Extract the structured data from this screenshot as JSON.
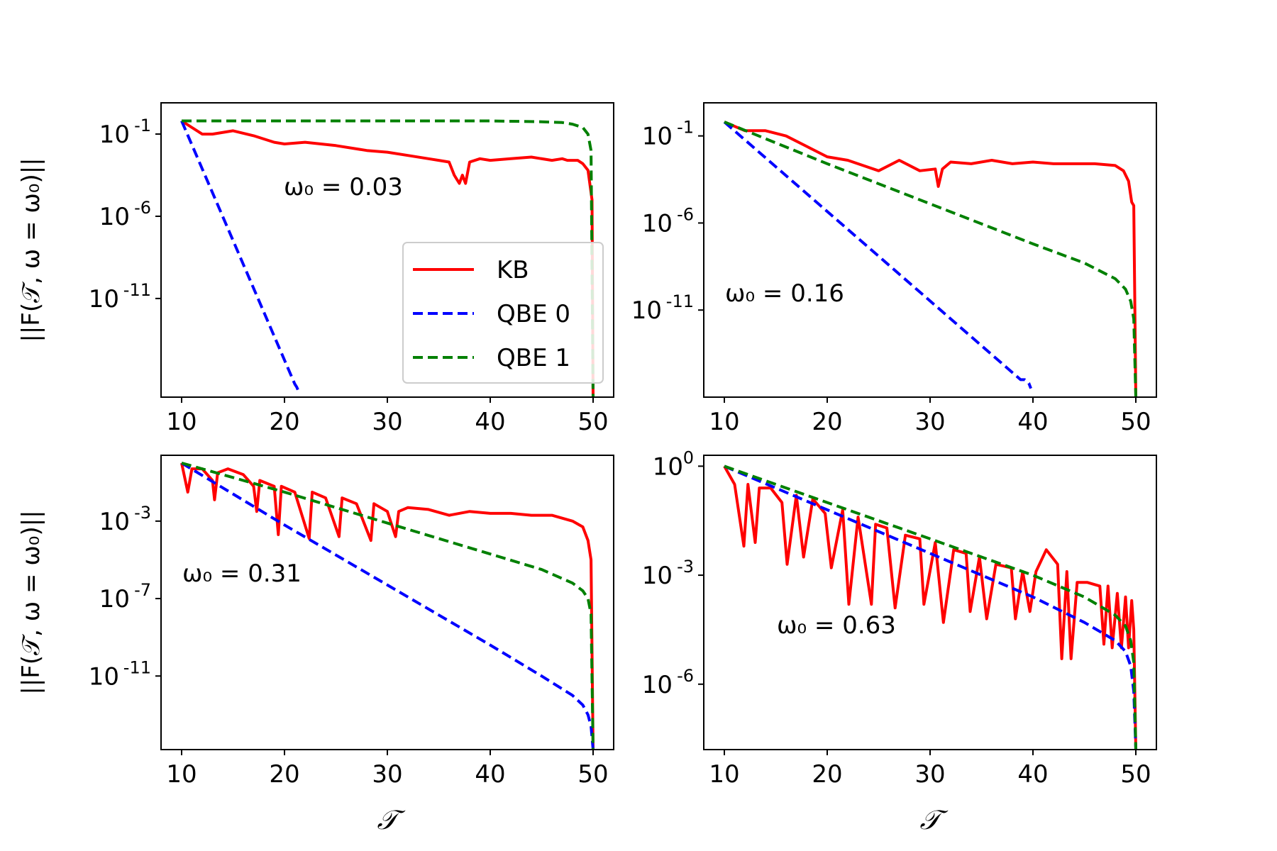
{
  "chart_data": [
    {
      "type": "line",
      "panel": "top-left",
      "annotation": "ω₀ = 0.03",
      "ylabel": "||F(𝒯, ω = ω₀)||",
      "xlabel": "",
      "xlim": [
        8,
        52
      ],
      "x_ticks": [
        "10",
        "20",
        "30",
        "40",
        "50"
      ],
      "ylog_range": [
        -17,
        0.9
      ],
      "y_ticks": [
        {
          "exp": -1,
          "label": "-1"
        },
        {
          "exp": -6,
          "label": "-6"
        },
        {
          "exp": -11,
          "label": "-11"
        }
      ],
      "series": [
        {
          "name": "KB",
          "color": "#ff0000",
          "dash": "solid",
          "x": [
            10,
            12,
            13,
            15,
            17,
            19,
            20,
            22,
            25,
            28,
            30,
            32,
            34,
            35,
            36,
            36.5,
            37,
            37.3,
            37.6,
            38,
            39,
            40,
            42,
            44,
            46,
            47,
            47.5,
            48,
            48.5,
            49,
            49.5,
            49.9,
            50
          ],
          "y": [
            -0.2,
            -1.0,
            -1.0,
            -0.8,
            -1.1,
            -1.5,
            -1.6,
            -1.5,
            -1.7,
            -2.0,
            -2.1,
            -2.3,
            -2.5,
            -2.6,
            -2.7,
            -3.5,
            -4.0,
            -3.5,
            -4.0,
            -2.7,
            -2.5,
            -2.6,
            -2.5,
            -2.4,
            -2.6,
            -2.5,
            -2.6,
            -2.6,
            -2.6,
            -2.8,
            -3.2,
            -5.0,
            -17
          ]
        },
        {
          "name": "QBE 0",
          "color": "#0000ff",
          "dash": "dashed",
          "x": [
            10,
            21,
            21.2,
            21.4
          ],
          "y": [
            -0.2,
            -16.2,
            -16.4,
            -16.7
          ]
        },
        {
          "name": "QBE 1",
          "color": "#008000",
          "dash": "dashed",
          "x": [
            10,
            20,
            30,
            40,
            45,
            47,
            48,
            49,
            49.5,
            49.8,
            50
          ],
          "y": [
            -0.2,
            -0.2,
            -0.2,
            -0.2,
            -0.25,
            -0.3,
            -0.4,
            -0.6,
            -1.0,
            -2.0,
            -17
          ]
        }
      ],
      "legend": {
        "entries": [
          "KB",
          "QBE 0",
          "QBE 1"
        ],
        "position": "lower-right"
      }
    },
    {
      "type": "line",
      "panel": "top-right",
      "annotation": "ω₀ = 0.16",
      "ylabel": "",
      "xlabel": "",
      "xlim": [
        8,
        52
      ],
      "x_ticks": [
        "10",
        "20",
        "30",
        "40",
        "50"
      ],
      "ylog_range": [
        -16,
        0.9
      ],
      "y_ticks": [
        {
          "exp": -1,
          "label": "-1"
        },
        {
          "exp": -6,
          "label": "-6"
        },
        {
          "exp": -11,
          "label": "-11"
        }
      ],
      "series": [
        {
          "name": "KB",
          "color": "#ff0000",
          "dash": "solid",
          "x": [
            10,
            12,
            14,
            16,
            18,
            20,
            22,
            24,
            25,
            27,
            29,
            30.5,
            30.8,
            31.2,
            32,
            34,
            36,
            38,
            40,
            42,
            44,
            46,
            48,
            48.8,
            49.3,
            49.6,
            49.8,
            50
          ],
          "y": [
            -0.2,
            -0.7,
            -0.7,
            -1.0,
            -1.6,
            -2.2,
            -2.4,
            -2.8,
            -3.0,
            -2.4,
            -3.0,
            -2.9,
            -3.9,
            -2.9,
            -2.5,
            -2.6,
            -2.4,
            -2.6,
            -2.5,
            -2.6,
            -2.6,
            -2.6,
            -2.7,
            -3.0,
            -3.6,
            -4.8,
            -5.0,
            -16
          ]
        },
        {
          "name": "QBE 0",
          "color": "#0000ff",
          "dash": "dashed",
          "x": [
            10,
            38.8,
            39.2,
            39.6,
            39.8
          ],
          "y": [
            -0.2,
            -15.0,
            -15.0,
            -15.2,
            -15.5
          ]
        },
        {
          "name": "QBE 1",
          "color": "#008000",
          "dash": "dashed",
          "x": [
            10,
            20,
            30,
            40,
            45,
            48,
            49,
            49.5,
            49.8,
            50
          ],
          "y": [
            -0.2,
            -2.6,
            -4.9,
            -7.2,
            -8.3,
            -9.2,
            -9.8,
            -10.5,
            -11.5,
            -16
          ]
        }
      ]
    },
    {
      "type": "line",
      "panel": "bottom-left",
      "annotation": "ω₀ = 0.31",
      "ylabel": "||F(𝒯, ω = ω₀)||",
      "xlabel": "𝒯",
      "xlim": [
        8,
        52
      ],
      "x_ticks": [
        "10",
        "20",
        "30",
        "40",
        "50"
      ],
      "ylog_range": [
        -14.8,
        0.4
      ],
      "y_ticks": [
        {
          "exp": -3,
          "label": "-3"
        },
        {
          "exp": -7,
          "label": "-7"
        },
        {
          "exp": -11,
          "label": "-11"
        }
      ],
      "series": [
        {
          "name": "KB",
          "color": "#ff0000",
          "dash": "solid",
          "x": [
            10,
            10.6,
            11,
            12,
            13,
            13.2,
            13.5,
            14.5,
            16,
            17,
            17.3,
            17.6,
            19,
            19.4,
            19.7,
            21,
            22.4,
            22.7,
            24,
            25.3,
            25.6,
            27,
            28.4,
            28.7,
            30,
            30.8,
            31.1,
            32,
            34,
            36,
            38,
            40,
            42,
            44,
            46,
            48,
            49,
            49.5,
            49.8,
            50
          ],
          "y": [
            0,
            -1.5,
            -0.3,
            -0.3,
            -0.9,
            -1.9,
            -0.5,
            -0.3,
            -0.6,
            -1.2,
            -2.5,
            -0.9,
            -1.2,
            -3.7,
            -1.2,
            -1.5,
            -3.9,
            -1.5,
            -1.8,
            -3.8,
            -1.8,
            -2.1,
            -4.0,
            -2.1,
            -2.5,
            -3.8,
            -2.5,
            -2.3,
            -2.4,
            -2.7,
            -2.5,
            -2.6,
            -2.6,
            -2.7,
            -2.7,
            -3.0,
            -3.3,
            -4.0,
            -5.0,
            -14.8
          ]
        },
        {
          "name": "QBE 0",
          "color": "#0000ff",
          "dash": "dashed",
          "x": [
            10,
            20,
            30,
            40,
            45,
            48,
            49,
            49.5,
            49.8,
            50
          ],
          "y": [
            0,
            -3.2,
            -6.3,
            -9.4,
            -11.0,
            -12.0,
            -12.5,
            -13.0,
            -13.6,
            -14.8
          ]
        },
        {
          "name": "QBE 1",
          "color": "#008000",
          "dash": "dashed",
          "x": [
            10,
            20,
            30,
            40,
            45,
            48,
            49,
            49.5,
            49.8,
            50
          ],
          "y": [
            0,
            -1.5,
            -3.1,
            -4.7,
            -5.5,
            -6.2,
            -6.6,
            -7.0,
            -7.8,
            -14.8
          ]
        }
      ]
    },
    {
      "type": "line",
      "panel": "bottom-right",
      "annotation": "ω₀ = 0.63",
      "ylabel": "",
      "xlabel": "𝒯",
      "xlim": [
        8,
        52
      ],
      "x_ticks": [
        "10",
        "20",
        "30",
        "40",
        "50"
      ],
      "ylog_range": [
        -7.8,
        0.3
      ],
      "y_ticks": [
        {
          "exp": 0,
          "label": "0"
        },
        {
          "exp": -3,
          "label": "-3"
        },
        {
          "exp": -6,
          "label": "-6"
        }
      ],
      "series": [
        {
          "name": "KB",
          "color": "#ff0000",
          "dash": "solid",
          "x": [
            10,
            11,
            11.9,
            12.3,
            13,
            13.4,
            14.5,
            15.6,
            16.1,
            17,
            17.7,
            18.6,
            19.8,
            20.4,
            21.5,
            22.1,
            23,
            24.3,
            24.7,
            25.8,
            26.6,
            27.6,
            29,
            29.4,
            30.5,
            31.3,
            32.3,
            33.5,
            33.9,
            34.8,
            35.5,
            36.4,
            37.9,
            38.3,
            39,
            39.7,
            40.3,
            41.3,
            42.4,
            42.8,
            43.3,
            43.7,
            44.3,
            45.3,
            46.5,
            46.9,
            47.3,
            47.7,
            48.2,
            48.6,
            49.0,
            49.3,
            49.6,
            49.8,
            50
          ],
          "y": [
            0,
            -0.5,
            -2.2,
            -0.5,
            -2.1,
            -0.6,
            -0.6,
            -1.0,
            -2.7,
            -0.8,
            -2.5,
            -0.9,
            -1.3,
            -2.8,
            -1.2,
            -3.8,
            -1.4,
            -3.8,
            -1.6,
            -1.7,
            -3.9,
            -1.9,
            -2.0,
            -3.8,
            -2.1,
            -4.3,
            -2.3,
            -2.4,
            -4.0,
            -2.5,
            -4.2,
            -2.7,
            -2.8,
            -4.2,
            -2.9,
            -4.0,
            -2.9,
            -2.3,
            -2.7,
            -5.3,
            -2.9,
            -5.3,
            -3.2,
            -3.2,
            -3.3,
            -4.9,
            -3.3,
            -5.0,
            -3.5,
            -5.0,
            -3.6,
            -5.0,
            -3.7,
            -4.5,
            -7.8
          ]
        },
        {
          "name": "QBE 0",
          "color": "#0000ff",
          "dash": "dashed",
          "x": [
            10,
            20,
            30,
            40,
            45,
            48,
            49,
            49.5,
            49.8,
            50
          ],
          "y": [
            0,
            -1.2,
            -2.4,
            -3.6,
            -4.3,
            -4.8,
            -5.1,
            -5.5,
            -6.2,
            -7.8
          ]
        },
        {
          "name": "QBE 1",
          "color": "#008000",
          "dash": "dashed",
          "x": [
            10,
            20,
            30,
            40,
            45,
            48,
            49,
            49.5,
            49.8,
            50
          ],
          "y": [
            0,
            -1.0,
            -2.0,
            -3.0,
            -3.6,
            -4.1,
            -4.4,
            -4.8,
            -5.4,
            -7.8
          ]
        }
      ]
    }
  ]
}
